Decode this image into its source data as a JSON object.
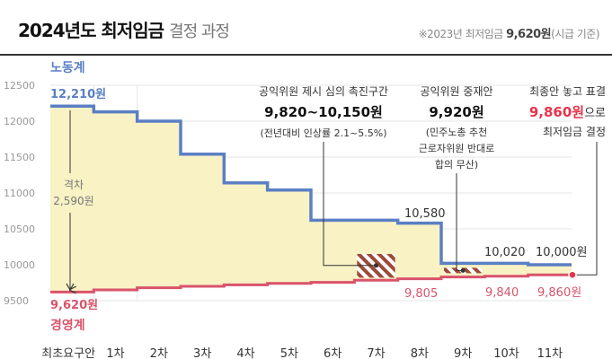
{
  "header": {
    "title_bold": "2024년도 최저임금",
    "title_rest": "결정 과정",
    "note_prefix": "※2023년 최저임금",
    "note_value": "9,620원",
    "note_suffix": "(시급 기준)"
  },
  "colors": {
    "labor": "#5b7fc4",
    "management": "#d9536b",
    "gap_fill": "#f8f2c4",
    "grid": "#e6e6e6",
    "final": "#e8334a",
    "hatch": "#9b4a3a"
  },
  "chart_data": {
    "type": "line",
    "categories": [
      "최초요구안",
      "1차",
      "2차",
      "3차",
      "4차",
      "5차",
      "6차",
      "7차",
      "8차",
      "9차",
      "10차",
      "11차"
    ],
    "ylim": [
      9500,
      12500
    ],
    "yticks": [
      "12500",
      "12000",
      "11500",
      "11000",
      "10500",
      "10000",
      "9500"
    ],
    "grid": true,
    "series": [
      {
        "name": "노동계",
        "values": [
          12210,
          12130,
          12000,
          11540,
          11140,
          11040,
          10620,
          10620,
          10580,
          10020,
          10020,
          10000
        ]
      },
      {
        "name": "경영계",
        "values": [
          9620,
          9650,
          9680,
          9700,
          9720,
          9740,
          9755,
          9785,
          9805,
          9830,
          9840,
          9860
        ]
      }
    ],
    "final_value": 9860,
    "data_labels": {
      "labor_start": "12,210원",
      "labor_8": "10,580",
      "labor_10": "10,020",
      "labor_11": "10,000원",
      "mgmt_start": "9,620원",
      "mgmt_8": "9,805",
      "mgmt_10": "9,840",
      "mgmt_11": "9,860원"
    },
    "gap": {
      "label": "격차",
      "value": "2,590원"
    },
    "annotations": {
      "range": {
        "line1": "공익위원 제시 심의 촉진구간",
        "line2": "9,820~10,150원",
        "line3": "(전년대비 인상률 2.1~5.5%)"
      },
      "mediation": {
        "line1": "공익위원 중재안",
        "line2": "9,920원",
        "line3": "(민주노총 추천",
        "line4": "근로자위원 반대로",
        "line5": "합의 무산)"
      },
      "final": {
        "line1": "최종안 놓고 표결",
        "line2_value": "9,860원",
        "line2_rest": "으로",
        "line3": "최저임금 결정"
      }
    }
  }
}
